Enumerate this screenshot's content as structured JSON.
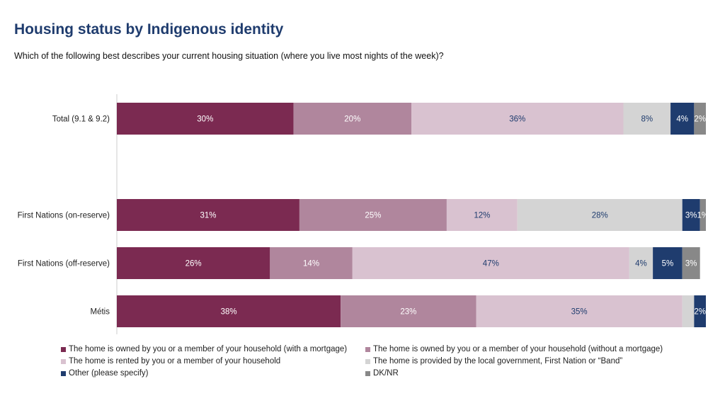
{
  "title": "Housing status by Indigenous identity",
  "subtitle": "Which of the following best describes your current housing situation (where you live most nights of the week)?",
  "chart_data": {
    "type": "bar",
    "orientation": "horizontal",
    "stacked": true,
    "title": "Housing status by Indigenous identity",
    "xlabel": "",
    "ylabel": "",
    "xlim": [
      0,
      100
    ],
    "categories": [
      "Total (9.1 & 9.2)",
      "First Nations (on-reserve)",
      "First Nations (off-reserve)",
      "Métis"
    ],
    "series": [
      {
        "name": "The home is owned by you or a member of your household (with a mortgage)",
        "color": "#7b2a51",
        "label_color": "#ffffff",
        "values": [
          30,
          31,
          26,
          38
        ],
        "labels": [
          "30%",
          "31%",
          "26%",
          "38%"
        ]
      },
      {
        "name": "The home is owned by you or a member of your household (without a mortgage)",
        "color": "#b0869d",
        "label_color": "#ffffff",
        "values": [
          20,
          25,
          14,
          23
        ],
        "labels": [
          "20%",
          "25%",
          "14%",
          "23%"
        ]
      },
      {
        "name": "The home is rented by you or a member of your household",
        "color": "#d9c2d0",
        "label_color": "#1f3c6e",
        "values": [
          36,
          12,
          47,
          35
        ],
        "labels": [
          "36%",
          "12%",
          "47%",
          "35%"
        ]
      },
      {
        "name": "The home is provided by the local government, First Nation or “Band”",
        "color": "#d4d4d4",
        "label_color": "#1f3c6e",
        "values": [
          8,
          28,
          4,
          2
        ],
        "labels": [
          "8%",
          "28%",
          "4%",
          ""
        ]
      },
      {
        "name": "Other (please specify)",
        "color": "#1f3c6e",
        "label_color": "#ffffff",
        "values": [
          4,
          3,
          5,
          2
        ],
        "labels": [
          "4%",
          "3%",
          "5%",
          "2%"
        ]
      },
      {
        "name": "DK/NR",
        "color": "#888888",
        "label_color": "#ffffff",
        "values": [
          2,
          1,
          3,
          0.3
        ],
        "labels": [
          "2%",
          "1%",
          "3%",
          ""
        ]
      }
    ],
    "legend_position": "bottom",
    "grid": false
  }
}
